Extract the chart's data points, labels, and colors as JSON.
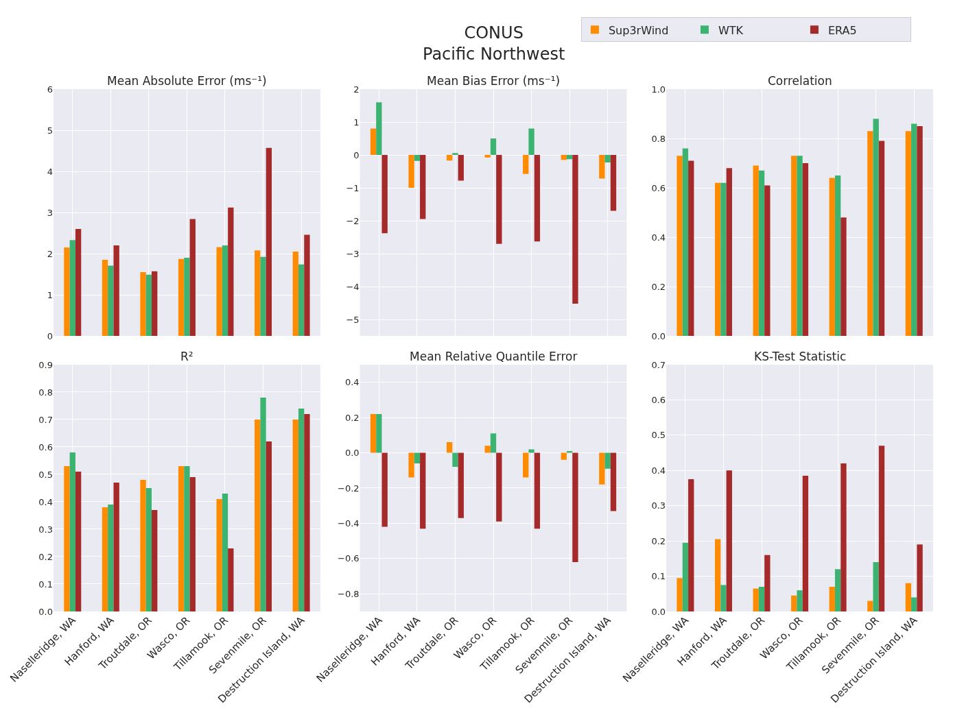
{
  "chart_data": [
    {
      "type": "bar",
      "title": "Mean Absolute Error (ms⁻¹)",
      "annotations": [
        "CONUS\nPacific Northwest"
      ],
      "legend": "top right",
      "grid": true,
      "tick_labels": "y",
      "categories": [
        "Naselleridge, WA",
        "Hanford, WA",
        "Troutdale, OR",
        "Wasco, OR",
        "Tillamook, OR",
        "Sevenmile, OR",
        "Destruction Island, WA"
      ],
      "ylim": [
        0,
        6
      ],
      "yticks": [
        0,
        1,
        2,
        3,
        4,
        5,
        6
      ],
      "series": [
        {
          "name": "Sup3rWind",
          "color": "#ff8c00",
          "values": [
            2.15,
            1.85,
            1.55,
            1.87,
            2.16,
            2.08,
            2.05
          ]
        },
        {
          "name": "WTK",
          "color": "#3cb371",
          "values": [
            2.33,
            1.71,
            1.49,
            1.9,
            2.2,
            1.92,
            1.74
          ]
        },
        {
          "name": "ERA5",
          "color": "#a52a2a",
          "values": [
            2.6,
            2.2,
            1.57,
            2.84,
            3.12,
            4.57,
            2.46
          ]
        }
      ]
    },
    {
      "type": "bar",
      "title": "Mean Bias Error (ms⁻¹)",
      "grid": true,
      "tick_labels": "y",
      "categories": [
        "Naselleridge, WA",
        "Hanford, WA",
        "Troutdale, OR",
        "Wasco, OR",
        "Tillamook, OR",
        "Sevenmile, OR",
        "Destruction Island, WA"
      ],
      "ylim": [
        -5.5,
        2
      ],
      "yticks": [
        {
          "value": -5,
          "label": "−5"
        },
        {
          "value": -4,
          "label": "−4"
        },
        {
          "value": -3,
          "label": "−3"
        },
        {
          "value": -2,
          "label": "−2"
        },
        {
          "value": -1,
          "label": "−1"
        },
        0,
        1,
        2
      ],
      "series": [
        {
          "name": "Sup3rWind",
          "color": "#ff8c00",
          "values": [
            0.8,
            -1.0,
            -0.17,
            -0.08,
            -0.58,
            -0.15,
            -0.72
          ]
        },
        {
          "name": "WTK",
          "color": "#3cb371",
          "values": [
            1.6,
            -0.18,
            0.06,
            0.5,
            0.8,
            -0.13,
            -0.23
          ]
        },
        {
          "name": "ERA5",
          "color": "#a52a2a",
          "values": [
            -2.38,
            -1.95,
            -0.78,
            -2.7,
            -2.63,
            -4.52,
            -1.7
          ]
        }
      ]
    },
    {
      "type": "bar",
      "title": "Correlation",
      "grid": true,
      "tick_labels": "y",
      "categories": [
        "Naselleridge, WA",
        "Hanford, WA",
        "Troutdale, OR",
        "Wasco, OR",
        "Tillamook, OR",
        "Sevenmile, OR",
        "Destruction Island, WA"
      ],
      "ylim": [
        0,
        1
      ],
      "yticks": [
        {
          "value": 0,
          "label": "0.0"
        },
        0.2,
        0.4,
        0.6,
        0.8,
        {
          "value": 1,
          "label": "1.0"
        }
      ],
      "series": [
        {
          "name": "Sup3rWind",
          "color": "#ff8c00",
          "values": [
            0.73,
            0.62,
            0.69,
            0.73,
            0.64,
            0.83,
            0.83
          ]
        },
        {
          "name": "WTK",
          "color": "#3cb371",
          "values": [
            0.76,
            0.62,
            0.67,
            0.73,
            0.65,
            0.88,
            0.86
          ]
        },
        {
          "name": "ERA5",
          "color": "#a52a2a",
          "values": [
            0.71,
            0.68,
            0.61,
            0.7,
            0.48,
            0.79,
            0.85
          ]
        }
      ]
    },
    {
      "type": "bar",
      "title": "R²",
      "grid": true,
      "categories": [
        "Naselleridge, WA",
        "Hanford, WA",
        "Troutdale, OR",
        "Wasco, OR",
        "Tillamook, OR",
        "Sevenmile, OR",
        "Destruction Island, WA"
      ],
      "ylim": [
        0,
        0.9
      ],
      "yticks": [
        {
          "value": 0,
          "label": "0.0"
        },
        0.1,
        0.2,
        0.3,
        0.4,
        0.5,
        0.6,
        0.7,
        0.8,
        0.9
      ],
      "series": [
        {
          "name": "Sup3rWind",
          "color": "#ff8c00",
          "values": [
            0.53,
            0.38,
            0.48,
            0.53,
            0.41,
            0.7,
            0.7
          ]
        },
        {
          "name": "WTK",
          "color": "#3cb371",
          "values": [
            0.58,
            0.39,
            0.45,
            0.53,
            0.43,
            0.78,
            0.74
          ]
        },
        {
          "name": "ERA5",
          "color": "#a52a2a",
          "values": [
            0.51,
            0.47,
            0.37,
            0.49,
            0.23,
            0.62,
            0.72
          ]
        }
      ]
    },
    {
      "type": "bar",
      "title": "Mean Relative Quantile Error",
      "grid": true,
      "categories": [
        "Naselleridge, WA",
        "Hanford, WA",
        "Troutdale, OR",
        "Wasco, OR",
        "Tillamook, OR",
        "Sevenmile, OR",
        "Destruction Island, WA"
      ],
      "ylim": [
        -0.9,
        0.5
      ],
      "yticks": [
        {
          "value": -0.8,
          "label": "−0.8"
        },
        {
          "value": -0.6,
          "label": "−0.6"
        },
        {
          "value": -0.4,
          "label": "−0.4"
        },
        {
          "value": -0.2,
          "label": "−0.2"
        },
        {
          "value": 0,
          "label": "0.0"
        },
        0.2,
        0.4
      ],
      "series": [
        {
          "name": "Sup3rWind",
          "color": "#ff8c00",
          "values": [
            0.22,
            -0.14,
            0.06,
            0.04,
            -0.14,
            -0.04,
            -0.18
          ]
        },
        {
          "name": "WTK",
          "color": "#3cb371",
          "values": [
            0.22,
            -0.06,
            -0.08,
            0.11,
            0.02,
            0.01,
            -0.09
          ]
        },
        {
          "name": "ERA5",
          "color": "#a52a2a",
          "values": [
            -0.42,
            -0.43,
            -0.37,
            -0.39,
            -0.43,
            -0.62,
            -0.33
          ]
        }
      ]
    },
    {
      "type": "bar",
      "title": "KS-Test Statistic",
      "grid": true,
      "categories": [
        "Naselleridge, WA",
        "Hanford, WA",
        "Troutdale, OR",
        "Wasco, OR",
        "Tillamook, OR",
        "Sevenmile, OR",
        "Destruction Island, WA"
      ],
      "ylim": [
        0,
        0.7
      ],
      "yticks": [
        {
          "value": 0,
          "label": "0.0"
        },
        0.1,
        0.2,
        0.3,
        0.4,
        0.5,
        0.6,
        0.7
      ],
      "series": [
        {
          "name": "Sup3rWind",
          "color": "#ff8c00",
          "values": [
            0.095,
            0.205,
            0.065,
            0.045,
            0.07,
            0.03,
            0.08
          ]
        },
        {
          "name": "WTK",
          "color": "#3cb371",
          "values": [
            0.195,
            0.075,
            0.07,
            0.06,
            0.12,
            0.14,
            0.04
          ]
        },
        {
          "name": "ERA5",
          "color": "#a52a2a",
          "values": [
            0.375,
            0.4,
            0.16,
            0.385,
            0.42,
            0.47,
            0.19
          ]
        }
      ]
    }
  ]
}
